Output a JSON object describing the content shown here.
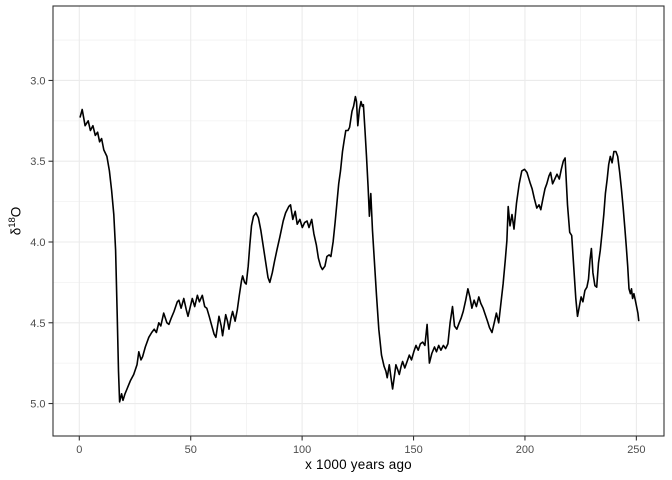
{
  "figure": {
    "background": "#ffffff",
    "panel_background": "#ffffff",
    "panel_border_color": "#333333",
    "grid_color": "#ebebeb",
    "line_color": "#000000",
    "tick_color": "#333333",
    "tick_label_color": "#4d4d4d",
    "axis_title_color": "#000000"
  },
  "chart_data": {
    "type": "line",
    "title": "",
    "xlabel": "x 1000 years ago",
    "ylabel_text": "δ18O",
    "ylabel_parts": {
      "symbol": "δ",
      "sup": "18",
      "suffix": "O"
    },
    "x_ticks": [
      0,
      50,
      100,
      150,
      200,
      250
    ],
    "x_tick_labels": [
      "0",
      "50",
      "100",
      "150",
      "200",
      "250"
    ],
    "y_ticks": [
      3.0,
      3.5,
      4.0,
      4.5,
      5.0
    ],
    "y_tick_labels": [
      "3.0",
      "3.5",
      "4.0",
      "4.5",
      "5.0"
    ],
    "x_minor_ticks": [
      25,
      75,
      125,
      175,
      225
    ],
    "y_minor_ticks": [
      2.75,
      3.25,
      3.75,
      4.25,
      4.75
    ],
    "xlim": [
      -11.8,
      262.4
    ],
    "ylim": [
      2.539,
      5.201
    ],
    "y_axis_reversed": true,
    "grid": true,
    "legend": false,
    "series": [
      {
        "name": "d18O",
        "points": [
          [
            0.3,
            3.23
          ],
          [
            1.3,
            3.18
          ],
          [
            2.6,
            3.28
          ],
          [
            4.0,
            3.25
          ],
          [
            5.0,
            3.31
          ],
          [
            6.1,
            3.28
          ],
          [
            7.2,
            3.34
          ],
          [
            8.2,
            3.32
          ],
          [
            9.1,
            3.38
          ],
          [
            10.0,
            3.36
          ],
          [
            11.0,
            3.43
          ],
          [
            12.4,
            3.47
          ],
          [
            13.5,
            3.56
          ],
          [
            14.5,
            3.68
          ],
          [
            15.5,
            3.83
          ],
          [
            16.3,
            4.05
          ],
          [
            17.0,
            4.45
          ],
          [
            17.6,
            4.8
          ],
          [
            18.1,
            4.99
          ],
          [
            19.0,
            4.94
          ],
          [
            19.6,
            4.98
          ],
          [
            20.5,
            4.94
          ],
          [
            21.4,
            4.91
          ],
          [
            22.9,
            4.86
          ],
          [
            24.4,
            4.82
          ],
          [
            25.9,
            4.76
          ],
          [
            26.7,
            4.68
          ],
          [
            27.7,
            4.73
          ],
          [
            28.4,
            4.71
          ],
          [
            29.6,
            4.65
          ],
          [
            31.2,
            4.59
          ],
          [
            32.5,
            4.56
          ],
          [
            33.6,
            4.54
          ],
          [
            34.6,
            4.56
          ],
          [
            35.7,
            4.5
          ],
          [
            36.6,
            4.52
          ],
          [
            37.9,
            4.44
          ],
          [
            39.3,
            4.5
          ],
          [
            40.2,
            4.51
          ],
          [
            41.3,
            4.47
          ],
          [
            42.5,
            4.43
          ],
          [
            44.0,
            4.37
          ],
          [
            44.7,
            4.36
          ],
          [
            45.7,
            4.41
          ],
          [
            46.9,
            4.35
          ],
          [
            48.0,
            4.42
          ],
          [
            48.8,
            4.46
          ],
          [
            50.0,
            4.39
          ],
          [
            50.7,
            4.35
          ],
          [
            51.8,
            4.4
          ],
          [
            53.0,
            4.33
          ],
          [
            53.9,
            4.37
          ],
          [
            55.2,
            4.33
          ],
          [
            56.3,
            4.4
          ],
          [
            57.2,
            4.41
          ],
          [
            58.3,
            4.46
          ],
          [
            59.3,
            4.51
          ],
          [
            60.5,
            4.57
          ],
          [
            61.3,
            4.59
          ],
          [
            62.7,
            4.46
          ],
          [
            63.7,
            4.52
          ],
          [
            64.3,
            4.58
          ],
          [
            65.7,
            4.45
          ],
          [
            66.5,
            4.49
          ],
          [
            67.2,
            4.54
          ],
          [
            68.1,
            4.47
          ],
          [
            68.8,
            4.43
          ],
          [
            69.9,
            4.49
          ],
          [
            70.9,
            4.42
          ],
          [
            71.8,
            4.33
          ],
          [
            72.8,
            4.24
          ],
          [
            73.3,
            4.21
          ],
          [
            74.2,
            4.25
          ],
          [
            74.9,
            4.26
          ],
          [
            75.8,
            4.15
          ],
          [
            76.5,
            4.02
          ],
          [
            77.3,
            3.9
          ],
          [
            78.2,
            3.84
          ],
          [
            79.3,
            3.82
          ],
          [
            80.4,
            3.85
          ],
          [
            81.5,
            3.93
          ],
          [
            82.7,
            4.04
          ],
          [
            83.7,
            4.13
          ],
          [
            84.7,
            4.22
          ],
          [
            85.5,
            4.25
          ],
          [
            86.6,
            4.19
          ],
          [
            87.6,
            4.12
          ],
          [
            88.7,
            4.05
          ],
          [
            90.0,
            3.97
          ],
          [
            91.5,
            3.87
          ],
          [
            92.6,
            3.82
          ],
          [
            94.0,
            3.78
          ],
          [
            94.8,
            3.77
          ],
          [
            95.8,
            3.86
          ],
          [
            96.9,
            3.81
          ],
          [
            97.8,
            3.89
          ],
          [
            99.0,
            3.86
          ],
          [
            100.1,
            3.91
          ],
          [
            101.1,
            3.88
          ],
          [
            102.2,
            3.87
          ],
          [
            103.1,
            3.91
          ],
          [
            104.3,
            3.86
          ],
          [
            105.3,
            3.95
          ],
          [
            106.4,
            4.02
          ],
          [
            107.3,
            4.1
          ],
          [
            108.3,
            4.15
          ],
          [
            109.1,
            4.17
          ],
          [
            110.2,
            4.15
          ],
          [
            111.1,
            4.09
          ],
          [
            112.1,
            4.08
          ],
          [
            112.9,
            4.09
          ],
          [
            113.9,
            4.0
          ],
          [
            114.8,
            3.88
          ],
          [
            115.6,
            3.76
          ],
          [
            116.4,
            3.64
          ],
          [
            117.2,
            3.56
          ],
          [
            118.1,
            3.44
          ],
          [
            118.9,
            3.37
          ],
          [
            119.6,
            3.31
          ],
          [
            120.6,
            3.31
          ],
          [
            121.3,
            3.29
          ],
          [
            122.4,
            3.19
          ],
          [
            123.1,
            3.16
          ],
          [
            123.9,
            3.1
          ],
          [
            124.4,
            3.13
          ],
          [
            125.0,
            3.28
          ],
          [
            125.7,
            3.18
          ],
          [
            126.4,
            3.13
          ],
          [
            127.0,
            3.16
          ],
          [
            127.5,
            3.15
          ],
          [
            128.2,
            3.31
          ],
          [
            128.9,
            3.47
          ],
          [
            129.6,
            3.66
          ],
          [
            130.2,
            3.84
          ],
          [
            130.8,
            3.7
          ],
          [
            131.6,
            3.93
          ],
          [
            132.4,
            4.11
          ],
          [
            133.4,
            4.33
          ],
          [
            134.4,
            4.54
          ],
          [
            135.6,
            4.7
          ],
          [
            136.8,
            4.77
          ],
          [
            137.6,
            4.8
          ],
          [
            138.2,
            4.84
          ],
          [
            139.1,
            4.76
          ],
          [
            139.9,
            4.84
          ],
          [
            140.6,
            4.91
          ],
          [
            141.4,
            4.83
          ],
          [
            142.1,
            4.76
          ],
          [
            142.9,
            4.79
          ],
          [
            143.6,
            4.82
          ],
          [
            144.4,
            4.77
          ],
          [
            145.1,
            4.74
          ],
          [
            146.1,
            4.78
          ],
          [
            147.1,
            4.74
          ],
          [
            148.1,
            4.7
          ],
          [
            149.1,
            4.73
          ],
          [
            150.1,
            4.68
          ],
          [
            151.1,
            4.64
          ],
          [
            152.1,
            4.67
          ],
          [
            153.1,
            4.63
          ],
          [
            154.1,
            4.62
          ],
          [
            155.1,
            4.64
          ],
          [
            156.1,
            4.51
          ],
          [
            157.1,
            4.75
          ],
          [
            158.2,
            4.69
          ],
          [
            159.4,
            4.65
          ],
          [
            160.3,
            4.68
          ],
          [
            161.3,
            4.64
          ],
          [
            162.3,
            4.67
          ],
          [
            163.4,
            4.64
          ],
          [
            164.4,
            4.66
          ],
          [
            165.4,
            4.63
          ],
          [
            166.4,
            4.5
          ],
          [
            167.5,
            4.4
          ],
          [
            168.4,
            4.52
          ],
          [
            169.4,
            4.54
          ],
          [
            170.5,
            4.5
          ],
          [
            171.4,
            4.47
          ],
          [
            172.3,
            4.43
          ],
          [
            173.4,
            4.36
          ],
          [
            174.4,
            4.29
          ],
          [
            175.3,
            4.34
          ],
          [
            176.2,
            4.41
          ],
          [
            177.2,
            4.36
          ],
          [
            178.2,
            4.4
          ],
          [
            179.3,
            4.34
          ],
          [
            180.2,
            4.38
          ],
          [
            181.2,
            4.41
          ],
          [
            182.2,
            4.45
          ],
          [
            183.2,
            4.49
          ],
          [
            184.1,
            4.53
          ],
          [
            185.2,
            4.56
          ],
          [
            186.4,
            4.49
          ],
          [
            187.2,
            4.44
          ],
          [
            188.2,
            4.5
          ],
          [
            189.2,
            4.38
          ],
          [
            190.2,
            4.26
          ],
          [
            191.2,
            4.11
          ],
          [
            191.9,
            3.99
          ],
          [
            192.5,
            3.78
          ],
          [
            193.3,
            3.9
          ],
          [
            194.2,
            3.83
          ],
          [
            195.1,
            3.92
          ],
          [
            196.2,
            3.76
          ],
          [
            197.4,
            3.64
          ],
          [
            198.6,
            3.56
          ],
          [
            199.8,
            3.55
          ],
          [
            200.9,
            3.57
          ],
          [
            202.2,
            3.63
          ],
          [
            203.2,
            3.67
          ],
          [
            204.2,
            3.73
          ],
          [
            205.3,
            3.79
          ],
          [
            206.3,
            3.77
          ],
          [
            207.1,
            3.8
          ],
          [
            208.1,
            3.73
          ],
          [
            209.0,
            3.67
          ],
          [
            209.8,
            3.64
          ],
          [
            210.8,
            3.59
          ],
          [
            211.5,
            3.57
          ],
          [
            212.4,
            3.64
          ],
          [
            213.4,
            3.61
          ],
          [
            214.4,
            3.58
          ],
          [
            215.4,
            3.61
          ],
          [
            216.3,
            3.55
          ],
          [
            217.2,
            3.5
          ],
          [
            218.0,
            3.48
          ],
          [
            219.1,
            3.77
          ],
          [
            220.1,
            3.94
          ],
          [
            221.0,
            3.96
          ],
          [
            221.9,
            4.16
          ],
          [
            222.8,
            4.35
          ],
          [
            223.6,
            4.46
          ],
          [
            224.4,
            4.4
          ],
          [
            225.2,
            4.34
          ],
          [
            226.0,
            4.37
          ],
          [
            226.9,
            4.3
          ],
          [
            227.8,
            4.28
          ],
          [
            228.5,
            4.23
          ],
          [
            229.2,
            4.11
          ],
          [
            229.8,
            4.04
          ],
          [
            230.5,
            4.19
          ],
          [
            231.4,
            4.27
          ],
          [
            232.2,
            4.28
          ],
          [
            233.0,
            4.13
          ],
          [
            233.8,
            4.05
          ],
          [
            234.6,
            3.94
          ],
          [
            235.4,
            3.83
          ],
          [
            236.1,
            3.7
          ],
          [
            236.9,
            3.61
          ],
          [
            237.6,
            3.52
          ],
          [
            238.3,
            3.47
          ],
          [
            239.1,
            3.51
          ],
          [
            239.9,
            3.44
          ],
          [
            240.8,
            3.44
          ],
          [
            241.6,
            3.47
          ],
          [
            242.5,
            3.57
          ],
          [
            243.3,
            3.67
          ],
          [
            244.1,
            3.79
          ],
          [
            244.8,
            3.91
          ],
          [
            245.5,
            4.03
          ],
          [
            246.1,
            4.15
          ],
          [
            246.7,
            4.29
          ],
          [
            247.3,
            4.32
          ],
          [
            247.8,
            4.29
          ],
          [
            248.3,
            4.35
          ],
          [
            248.9,
            4.32
          ],
          [
            249.5,
            4.36
          ],
          [
            250.1,
            4.4
          ],
          [
            250.7,
            4.44
          ],
          [
            251.1,
            4.49
          ]
        ]
      }
    ]
  }
}
